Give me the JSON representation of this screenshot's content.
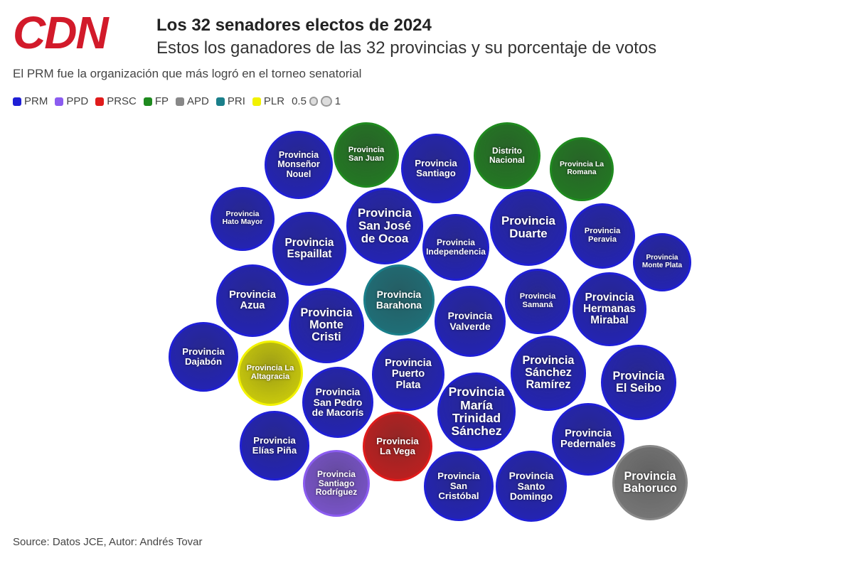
{
  "logo": "CDN",
  "chart_data": {
    "type": "bubble",
    "title": "Los 32 senadores electos de 2024",
    "subtitle": "Estos los ganadores de las 32 provincias y su porcentaje de votos",
    "note": "El PRM fue la organización que más logró en el torneo senatorial",
    "source": "Source: Datos JCE, Autor: Andrés Tovar",
    "size_legend": [
      0.5,
      1
    ],
    "series": [
      {
        "name": "PRM",
        "color": "#1f1fd6",
        "labels": [
          "Provincia Monseñor Nouel",
          "Provincia Santiago",
          "Provincia Hato Mayor",
          "Provincia Espaillat",
          "Provincia San José de Ocoa",
          "Provincia Independencia",
          "Provincia Duarte",
          "Provincia Peravia",
          "Provincia Monte Plata",
          "Provincia Azua",
          "Provincia Monte Cristi",
          "Provincia Valverde",
          "Provincia Samaná",
          "Provincia Hermanas Mirabal",
          "Provincia Dajabón",
          "Provincia Puerto Plata",
          "Provincia San Pedro de Macorís",
          "Provincia María Trinidad Sánchez",
          "Provincia Sánchez Ramírez",
          "Provincia El Seibo",
          "Provincia Elías Piña",
          "Provincia Pedernales",
          "Provincia San Cristóbal",
          "Provincia Santo Domingo"
        ],
        "values": [
          0.68,
          0.71,
          0.6,
          0.8,
          0.87,
          0.66,
          0.87,
          0.63,
          0.5,
          0.77,
          0.84,
          0.74,
          0.63,
          0.8,
          0.71,
          0.77,
          0.74,
          0.9,
          0.84,
          0.84,
          0.71,
          0.77,
          0.71,
          0.74
        ]
      },
      {
        "name": "PPD",
        "color": "#8b5cf0",
        "labels": [
          "Provincia Santiago Rodríguez"
        ],
        "values": [
          0.66
        ]
      },
      {
        "name": "PRSC",
        "color": "#e01b1b",
        "labels": [
          "Provincia La Vega"
        ],
        "values": [
          0.71
        ]
      },
      {
        "name": "FP",
        "color": "#1f8a1f",
        "labels": [
          "Provincia San Juan",
          "Distrito Nacional",
          "Provincia La Romana"
        ],
        "values": [
          0.63,
          0.66,
          0.6
        ]
      },
      {
        "name": "APD",
        "color": "#888888",
        "labels": [
          "Provincia Bahoruco"
        ],
        "values": [
          0.84
        ]
      },
      {
        "name": "PRI",
        "color": "#1a7f8a",
        "labels": [
          "Provincia Barahona"
        ],
        "values": [
          0.74
        ]
      },
      {
        "name": "PLR",
        "color": "#f2f200",
        "labels": [
          "Provincia La Altagracia"
        ],
        "values": [
          0.63
        ]
      }
    ]
  }
}
